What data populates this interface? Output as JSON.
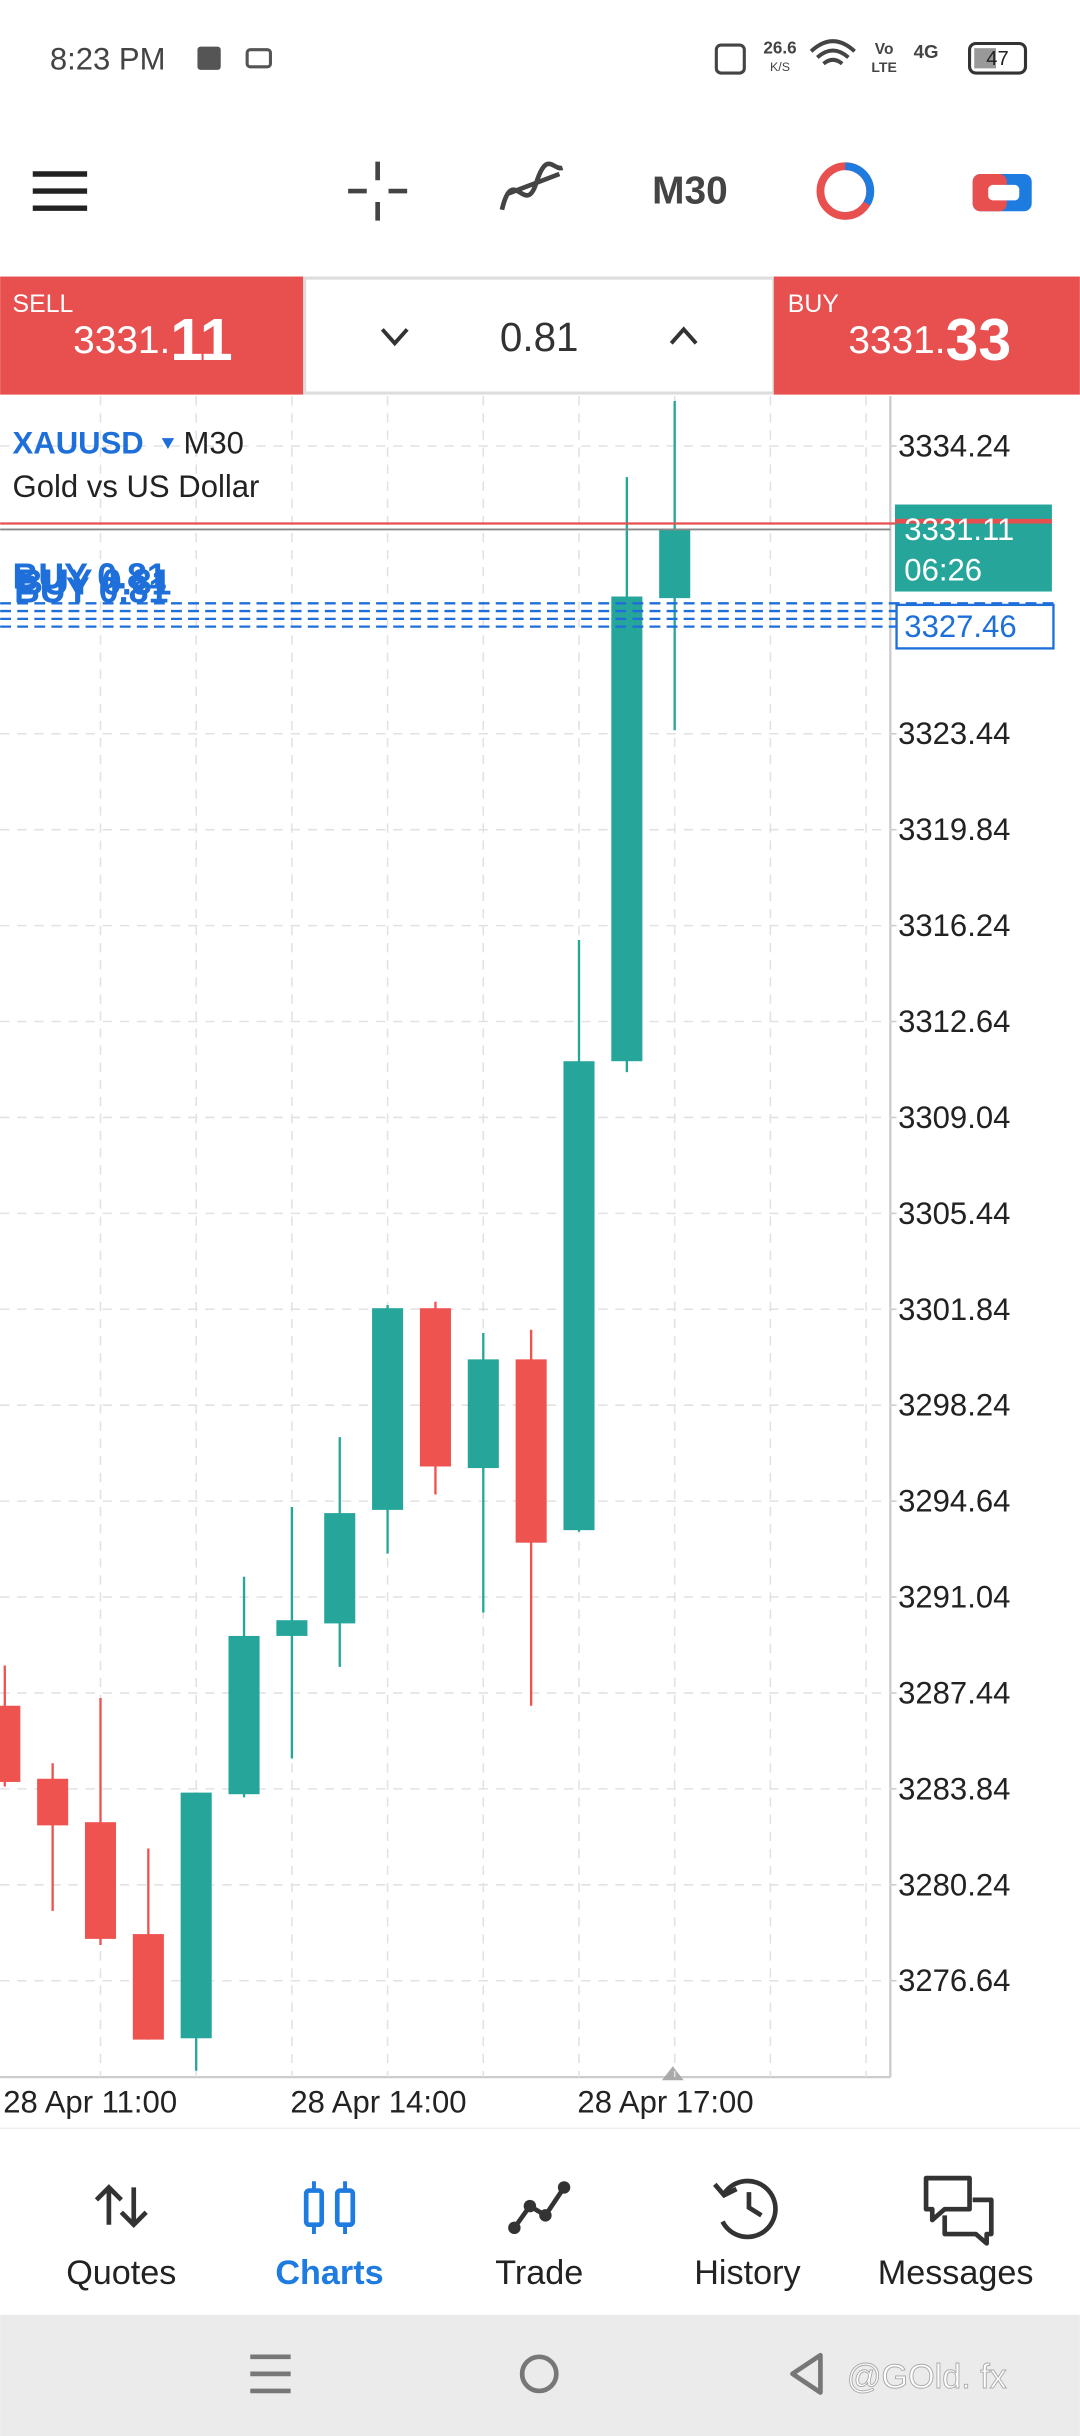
{
  "status_bar": {
    "time": "8:23 PM",
    "speed": "26.6",
    "speed_unit": "K/S",
    "volte_top": "Vo",
    "volte_bottom": "LTE",
    "network": "4G",
    "battery": "47"
  },
  "toolbar": {
    "timeframe": "M30"
  },
  "trade_panel": {
    "sell_label": "SELL",
    "sell_price_main": "3331.",
    "sell_price_big": "11",
    "lot": "0.81",
    "buy_label": "BUY",
    "buy_price_main": "3331.",
    "buy_price_big": "33"
  },
  "chart_data": {
    "type": "candlestick",
    "symbol": "XAUUSD",
    "timeframe": "M30",
    "description": "Gold vs US Dollar",
    "x": [
      "28 Apr 11:00",
      null,
      null,
      null,
      null,
      null,
      "28 Apr 14:00",
      null,
      null,
      null,
      null,
      null,
      "28 Apr 17:00",
      null,
      null
    ],
    "open": [
      3286.96,
      3284.22,
      3282.59,
      3278.39,
      3274.48,
      3283.64,
      3289.58,
      3290.05,
      3294.31,
      3301.88,
      3295.88,
      3299.96,
      3293.55,
      3311.15,
      3328.53
    ],
    "high": [
      3288.47,
      3284.8,
      3287.25,
      3281.6,
      3283.7,
      3291.8,
      3294.42,
      3297.04,
      3302.0,
      3302.12,
      3300.95,
      3301.07,
      3315.7,
      3333.07,
      3335.93
    ],
    "low": [
      3283.93,
      3279.26,
      3277.98,
      3274.43,
      3273.26,
      3283.52,
      3284.98,
      3288.42,
      3292.67,
      3294.89,
      3290.46,
      3286.96,
      3293.49,
      3310.74,
      3323.57
    ],
    "close": [
      3284.1,
      3282.47,
      3278.21,
      3274.43,
      3283.7,
      3289.58,
      3290.17,
      3294.19,
      3301.88,
      3295.94,
      3299.96,
      3293.08,
      3311.15,
      3328.59,
      3331.11
    ],
    "up_color": "#26a69a",
    "down_color": "#ef5350",
    "ylim": [
      3273.08,
      3336.11
    ],
    "yticks": [
      3334.24,
      3323.44,
      3319.84,
      3316.24,
      3312.64,
      3309.04,
      3305.44,
      3301.84,
      3298.24,
      3294.64,
      3291.04,
      3287.44,
      3283.84,
      3280.24,
      3276.64
    ],
    "grid": true,
    "bid_price": 3331.11,
    "ask_price": 3331.33,
    "countdown": "06:26",
    "order_label": "BUY 0.81",
    "order_price": 3327.46
  },
  "nav": {
    "items": [
      "Quotes",
      "Charts",
      "Trade",
      "History",
      "Messages"
    ],
    "active": 1
  },
  "watermark": "@GOld. fx"
}
